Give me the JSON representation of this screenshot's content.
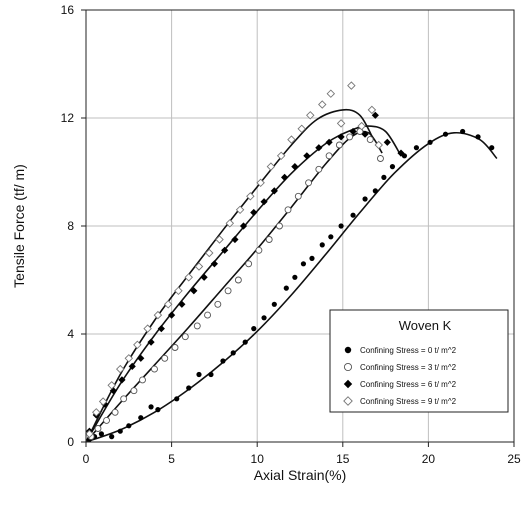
{
  "chart_data": {
    "type": "scatter",
    "xlabel": "Axial Strain(%)",
    "ylabel": "Tensile Force (tf/ m)",
    "xlim": [
      0,
      25
    ],
    "ylim": [
      0,
      16
    ],
    "x_ticks": [
      0,
      5,
      10,
      15,
      20,
      25
    ],
    "y_ticks": [
      0,
      4,
      8,
      12,
      16
    ],
    "grid": true,
    "legend": {
      "title": "Woven K",
      "placement": "bottom-right"
    },
    "series": [
      {
        "name": "Confining Stress = 0 t/ m^2",
        "marker": "filled-circle",
        "color": "#000000",
        "points": [
          [
            0.2,
            0.1
          ],
          [
            0.5,
            0.2
          ],
          [
            0.9,
            0.3
          ],
          [
            1.5,
            0.2
          ],
          [
            2.0,
            0.4
          ],
          [
            2.5,
            0.6
          ],
          [
            3.2,
            0.9
          ],
          [
            3.8,
            1.3
          ],
          [
            4.2,
            1.2
          ],
          [
            5.3,
            1.6
          ],
          [
            6.0,
            2.0
          ],
          [
            6.6,
            2.5
          ],
          [
            7.3,
            2.5
          ],
          [
            8.0,
            3.0
          ],
          [
            8.6,
            3.3
          ],
          [
            9.3,
            3.7
          ],
          [
            9.8,
            4.2
          ],
          [
            10.4,
            4.6
          ],
          [
            11.0,
            5.1
          ],
          [
            11.7,
            5.7
          ],
          [
            12.2,
            6.1
          ],
          [
            12.7,
            6.6
          ],
          [
            13.2,
            6.8
          ],
          [
            13.8,
            7.3
          ],
          [
            14.3,
            7.6
          ],
          [
            14.9,
            8.0
          ],
          [
            15.6,
            8.4
          ],
          [
            16.3,
            9.0
          ],
          [
            16.9,
            9.3
          ],
          [
            17.4,
            9.8
          ],
          [
            17.9,
            10.2
          ],
          [
            18.6,
            10.6
          ],
          [
            19.3,
            10.9
          ],
          [
            20.1,
            11.1
          ],
          [
            21.0,
            11.4
          ],
          [
            22.0,
            11.5
          ],
          [
            22.9,
            11.3
          ],
          [
            23.7,
            10.9
          ]
        ]
      },
      {
        "name": "Confining Stress = 3 t/ m^2",
        "marker": "open-circle",
        "color": "#000000",
        "points": [
          [
            0.3,
            0.2
          ],
          [
            0.7,
            0.5
          ],
          [
            1.2,
            0.8
          ],
          [
            1.7,
            1.1
          ],
          [
            2.2,
            1.6
          ],
          [
            2.8,
            1.9
          ],
          [
            3.3,
            2.3
          ],
          [
            4.0,
            2.7
          ],
          [
            4.6,
            3.1
          ],
          [
            5.2,
            3.5
          ],
          [
            5.8,
            3.9
          ],
          [
            6.5,
            4.3
          ],
          [
            7.1,
            4.7
          ],
          [
            7.7,
            5.1
          ],
          [
            8.3,
            5.6
          ],
          [
            8.9,
            6.0
          ],
          [
            9.5,
            6.6
          ],
          [
            10.1,
            7.1
          ],
          [
            10.7,
            7.5
          ],
          [
            11.3,
            8.0
          ],
          [
            11.8,
            8.6
          ],
          [
            12.4,
            9.1
          ],
          [
            13.0,
            9.6
          ],
          [
            13.6,
            10.1
          ],
          [
            14.2,
            10.6
          ],
          [
            14.8,
            11.0
          ],
          [
            15.4,
            11.3
          ],
          [
            16.0,
            11.5
          ],
          [
            16.6,
            11.2
          ],
          [
            17.2,
            10.5
          ]
        ]
      },
      {
        "name": "Confining Stress = 6 t/ m^2",
        "marker": "filled-diamond",
        "color": "#000000",
        "points": [
          [
            0.2,
            0.4
          ],
          [
            0.6,
            1.0
          ],
          [
            1.1,
            1.4
          ],
          [
            1.6,
            1.9
          ],
          [
            2.1,
            2.3
          ],
          [
            2.7,
            2.8
          ],
          [
            3.2,
            3.1
          ],
          [
            3.8,
            3.7
          ],
          [
            4.4,
            4.2
          ],
          [
            5.0,
            4.7
          ],
          [
            5.6,
            5.1
          ],
          [
            6.3,
            5.6
          ],
          [
            6.9,
            6.1
          ],
          [
            7.5,
            6.6
          ],
          [
            8.1,
            7.1
          ],
          [
            8.7,
            7.5
          ],
          [
            9.2,
            8.0
          ],
          [
            9.8,
            8.5
          ],
          [
            10.4,
            8.9
          ],
          [
            11.0,
            9.3
          ],
          [
            11.6,
            9.8
          ],
          [
            12.2,
            10.2
          ],
          [
            12.9,
            10.6
          ],
          [
            13.6,
            10.9
          ],
          [
            14.2,
            11.1
          ],
          [
            14.9,
            11.3
          ],
          [
            15.6,
            11.5
          ],
          [
            16.3,
            11.4
          ],
          [
            16.9,
            12.1
          ],
          [
            17.6,
            11.1
          ],
          [
            18.4,
            10.7
          ]
        ]
      },
      {
        "name": "Confining Stress = 9 t/ m^2",
        "marker": "open-diamond",
        "color": "#000000",
        "points": [
          [
            0.2,
            0.3
          ],
          [
            0.6,
            1.1
          ],
          [
            1.0,
            1.5
          ],
          [
            1.5,
            2.1
          ],
          [
            2.0,
            2.7
          ],
          [
            2.5,
            3.1
          ],
          [
            3.0,
            3.6
          ],
          [
            3.6,
            4.2
          ],
          [
            4.2,
            4.7
          ],
          [
            4.8,
            5.1
          ],
          [
            5.4,
            5.6
          ],
          [
            6.0,
            6.1
          ],
          [
            6.6,
            6.5
          ],
          [
            7.2,
            7.0
          ],
          [
            7.8,
            7.5
          ],
          [
            8.4,
            8.1
          ],
          [
            9.0,
            8.6
          ],
          [
            9.6,
            9.1
          ],
          [
            10.2,
            9.6
          ],
          [
            10.8,
            10.2
          ],
          [
            11.4,
            10.6
          ],
          [
            12.0,
            11.2
          ],
          [
            12.6,
            11.6
          ],
          [
            13.1,
            12.1
          ],
          [
            13.8,
            12.5
          ],
          [
            14.3,
            12.9
          ],
          [
            14.9,
            11.8
          ],
          [
            15.5,
            13.2
          ],
          [
            16.1,
            11.7
          ],
          [
            16.7,
            12.3
          ],
          [
            17.1,
            11.0
          ]
        ]
      }
    ],
    "fit_curves": [
      {
        "series": "Confining Stress = 0 t/ m^2",
        "x": [
          0,
          2,
          4,
          6,
          8,
          10,
          12,
          14,
          16,
          18,
          20,
          21.5,
          23,
          24
        ],
        "y": [
          0,
          0.45,
          1.1,
          1.95,
          2.95,
          4.1,
          5.45,
          6.95,
          8.5,
          9.95,
          11.05,
          11.45,
          11.2,
          10.5
        ]
      },
      {
        "series": "Confining Stress = 3 t/ m^2",
        "x": [
          0,
          2,
          4,
          6,
          8,
          10,
          12,
          14,
          15.5,
          16.5,
          17.3
        ],
        "y": [
          0,
          1.45,
          2.85,
          4.25,
          5.7,
          7.15,
          8.7,
          10.3,
          11.3,
          11.45,
          10.7
        ]
      },
      {
        "series": "Confining Stress = 6 t/ m^2",
        "x": [
          0,
          2,
          4,
          6,
          8,
          10,
          12,
          14,
          15.5,
          16.5,
          17.5,
          18.4
        ],
        "y": [
          0,
          2.15,
          3.95,
          5.55,
          7.05,
          8.55,
          9.95,
          11.05,
          11.55,
          11.7,
          11.5,
          10.6
        ]
      },
      {
        "series": "Confining Stress = 9 t/ m^2",
        "x": [
          0,
          2,
          4,
          6,
          8,
          10,
          12,
          13.5,
          15,
          16,
          16.8
        ],
        "y": [
          0,
          2.5,
          4.5,
          6.2,
          7.85,
          9.45,
          11.0,
          11.95,
          12.3,
          12.1,
          11.2
        ]
      }
    ]
  }
}
